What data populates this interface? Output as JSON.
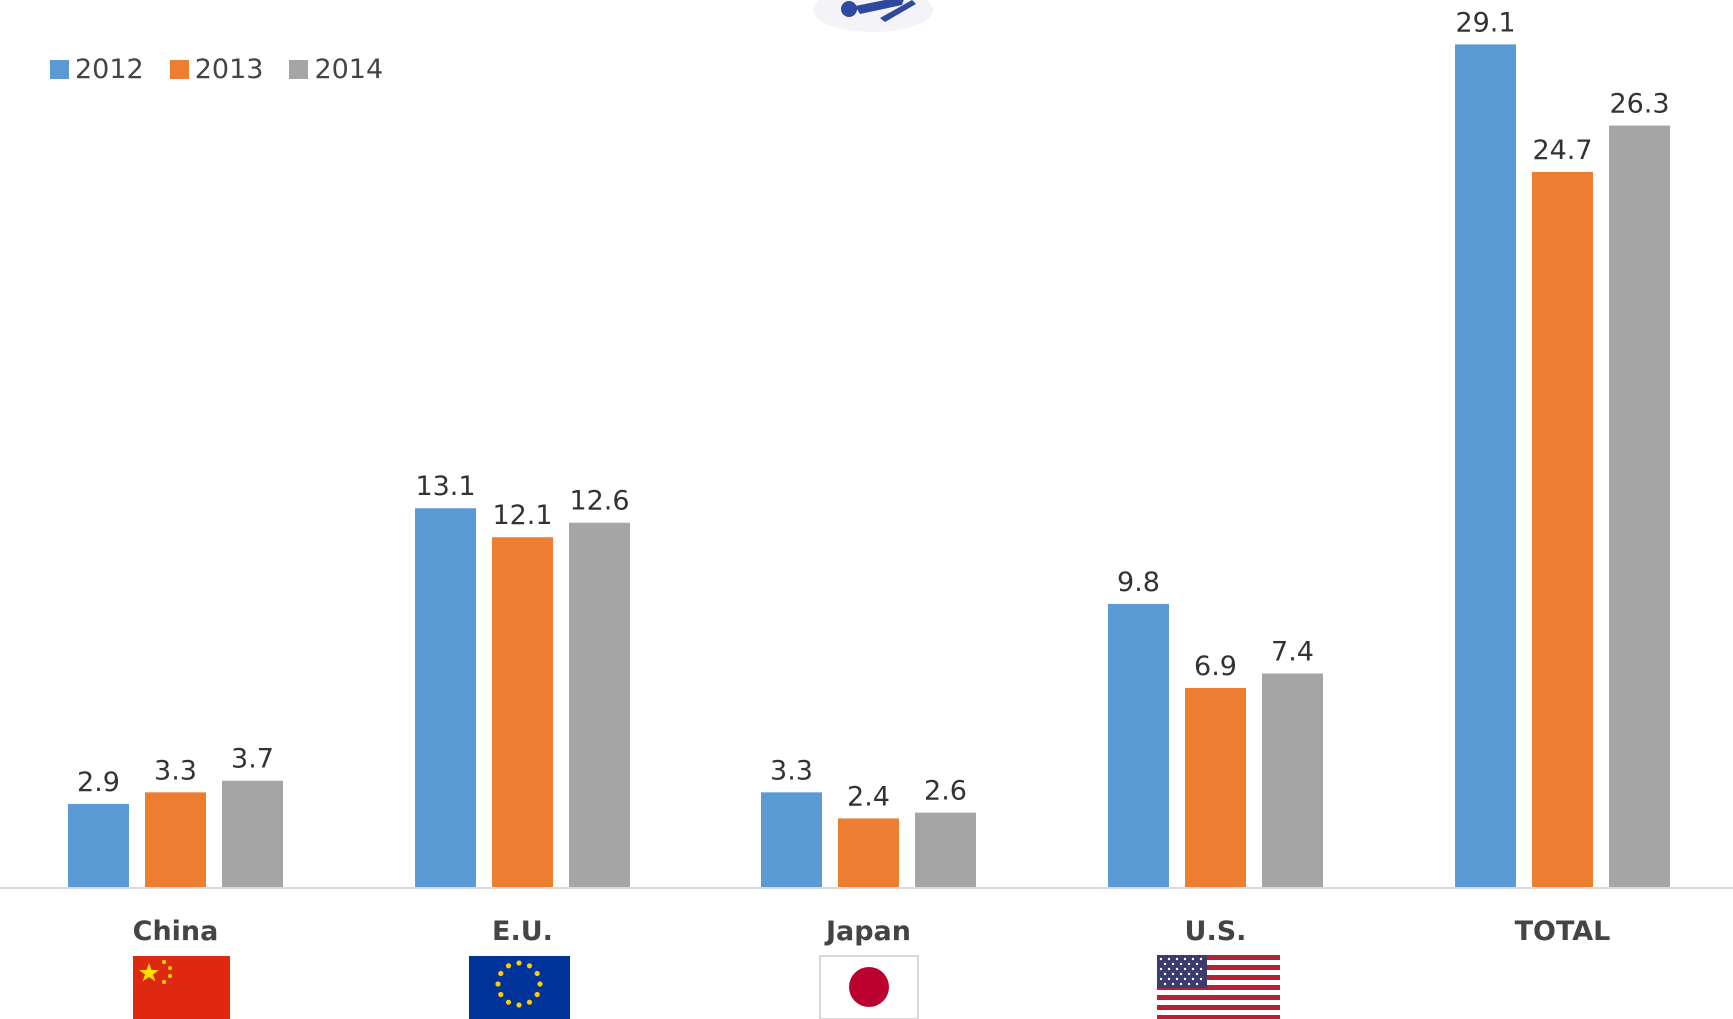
{
  "chart_data": {
    "type": "bar",
    "categories": [
      "China",
      "E.U.",
      "Japan",
      "U.S.",
      "TOTAL"
    ],
    "series": [
      {
        "name": "2012",
        "color": "#5b9bd5",
        "values": [
          2.9,
          13.1,
          3.3,
          9.8,
          29.1
        ]
      },
      {
        "name": "2013",
        "color": "#ed7d31",
        "values": [
          3.3,
          12.1,
          2.4,
          6.9,
          24.7
        ]
      },
      {
        "name": "2014",
        "color": "#a5a5a5",
        "values": [
          3.7,
          12.6,
          2.6,
          7.4,
          26.3
        ]
      }
    ],
    "legend_position": "top-left",
    "grid": false,
    "ylim": [
      0,
      30
    ],
    "category_icons": [
      "china-flag-icon",
      "eu-flag-icon",
      "japan-flag-icon",
      "us-flag-icon",
      ""
    ]
  }
}
